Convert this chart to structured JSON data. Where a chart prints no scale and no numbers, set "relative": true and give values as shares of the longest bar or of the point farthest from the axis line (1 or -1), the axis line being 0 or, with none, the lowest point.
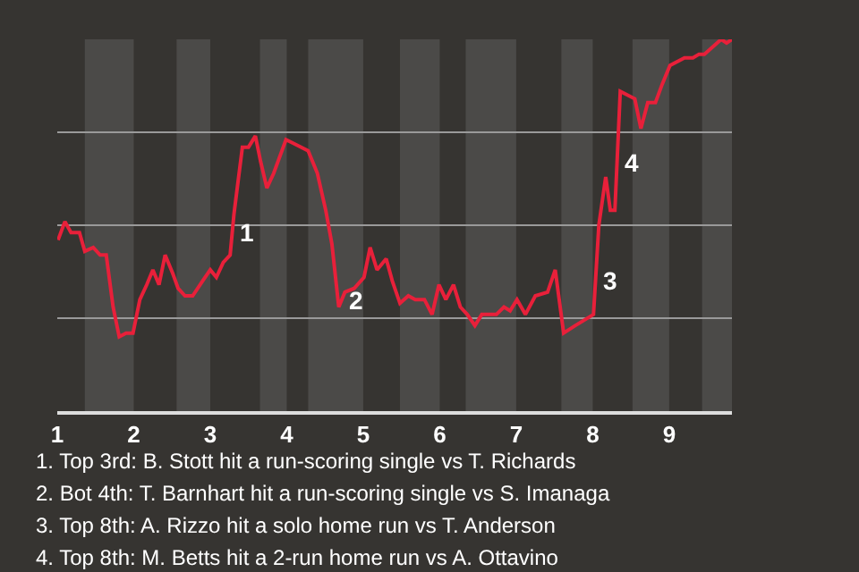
{
  "chart_data": {
    "type": "line",
    "relative": true,
    "grid": "y",
    "marker": "none",
    "line_style": "solid",
    "x": [
      1.01,
      1.1,
      1.18,
      1.29,
      1.36,
      1.47,
      1.56,
      1.64,
      1.73,
      1.81,
      1.9,
      1.99,
      2.08,
      2.17,
      2.25,
      2.33,
      2.41,
      2.51,
      2.58,
      2.67,
      2.77,
      2.9,
      3.0,
      3.08,
      3.17,
      3.26,
      3.31,
      3.42,
      3.5,
      3.59,
      3.66,
      3.74,
      3.83,
      3.99,
      4.09,
      4.28,
      4.4,
      4.51,
      4.59,
      4.68,
      4.76,
      4.88,
      5.01,
      5.09,
      5.18,
      5.3,
      5.38,
      5.48,
      5.59,
      5.68,
      5.8,
      5.9,
      5.99,
      6.08,
      6.18,
      6.27,
      6.36,
      6.46,
      6.55,
      6.74,
      6.84,
      6.92,
      7.01,
      7.12,
      7.25,
      7.41,
      7.51,
      7.62,
      7.77,
      8.01,
      8.08,
      8.17,
      8.23,
      8.29,
      8.36,
      8.55,
      8.63,
      8.72,
      8.82,
      8.91,
      9.01,
      9.2,
      9.31,
      9.39,
      9.46,
      9.68,
      9.75,
      9.82
    ],
    "series": [
      {
        "color": "#e8203a",
        "values": [
          0.46,
          0.51,
          0.48,
          0.48,
          0.43,
          0.44,
          0.42,
          0.42,
          0.28,
          0.2,
          0.21,
          0.21,
          0.3,
          0.34,
          0.38,
          0.34,
          0.42,
          0.37,
          0.33,
          0.31,
          0.31,
          0.35,
          0.38,
          0.36,
          0.4,
          0.42,
          0.53,
          0.71,
          0.71,
          0.74,
          0.67,
          0.6,
          0.64,
          0.73,
          0.72,
          0.7,
          0.64,
          0.54,
          0.45,
          0.28,
          0.32,
          0.33,
          0.36,
          0.44,
          0.38,
          0.41,
          0.35,
          0.29,
          0.31,
          0.3,
          0.3,
          0.26,
          0.34,
          0.3,
          0.34,
          0.28,
          0.26,
          0.23,
          0.26,
          0.26,
          0.28,
          0.27,
          0.3,
          0.26,
          0.31,
          0.32,
          0.38,
          0.21,
          0.23,
          0.26,
          0.5,
          0.63,
          0.54,
          0.54,
          0.86,
          0.84,
          0.76,
          0.83,
          0.83,
          0.88,
          0.93,
          0.95,
          0.95,
          0.96,
          0.96,
          1.0,
          0.99,
          1.0
        ]
      }
    ],
    "xlim": [
      1,
      9.82
    ],
    "xticks": [
      1,
      2,
      3,
      4,
      5,
      6,
      7,
      8,
      9
    ],
    "bands": [
      {
        "axis": "x",
        "from": 1.36,
        "to": 2,
        "color": "#4b4a48"
      },
      {
        "axis": "x",
        "from": 2.56,
        "to": 3,
        "color": "#4b4a48"
      },
      {
        "axis": "x",
        "from": 3.65,
        "to": 4,
        "color": "#4b4a48"
      },
      {
        "axis": "x",
        "from": 4.28,
        "to": 5,
        "color": "#4b4a48"
      },
      {
        "axis": "x",
        "from": 5.48,
        "to": 6,
        "color": "#4b4a48"
      },
      {
        "axis": "x",
        "from": 6.34,
        "to": 7,
        "color": "#4b4a48"
      },
      {
        "axis": "x",
        "from": 7.59,
        "to": 8,
        "color": "#4b4a48"
      },
      {
        "axis": "x",
        "from": 8.52,
        "to": 9,
        "color": "#4b4a48"
      },
      {
        "axis": "x",
        "from": 9.43,
        "to": 9.82,
        "color": "#4b4a48"
      }
    ],
    "annotations": [
      {
        "text": "1",
        "x": 3.29,
        "y": 0.48
      },
      {
        "text": "2",
        "x": 4.72,
        "y": 0.3
      },
      {
        "text": "3",
        "x": 8.04,
        "y": 0.35
      },
      {
        "text": "4",
        "x": 8.32,
        "y": 0.67
      },
      "1. Top 3rd: B. Stott hit a run-scoring single vs T. Richards",
      "2. Bot 4th: T. Barnhart hit a run-scoring single vs S. Imanaga",
      "3. Top 8th: A. Rizzo hit a solo home run vs T. Anderson",
      "4. Top 8th: M. Betts hit a 2-run home run vs A. Ottavino"
    ]
  }
}
